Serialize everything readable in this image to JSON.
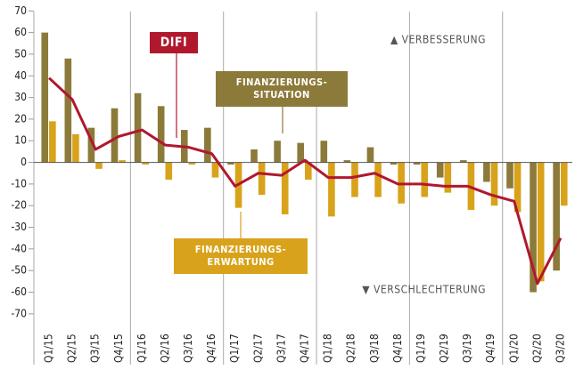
{
  "chart_data": {
    "type": "bar_line",
    "categories": [
      "Q1/15",
      "Q2/15",
      "Q3/15",
      "Q4/15",
      "Q1/16",
      "Q2/16",
      "Q3/16",
      "Q4/16",
      "Q1/17",
      "Q2/17",
      "Q3/17",
      "Q4/17",
      "Q1/18",
      "Q2/18",
      "Q3/18",
      "Q4/18",
      "Q1/19",
      "Q2/19",
      "Q3/19",
      "Q4/19",
      "Q1/20",
      "Q2/20",
      "Q3/20"
    ],
    "series": [
      {
        "name": [
          "FINANZIERUNGS-",
          "SITUATION"
        ],
        "color": "#8c7a3a",
        "kind": "bar",
        "values": [
          60,
          48,
          16,
          25,
          32,
          26,
          15,
          16,
          -1,
          6,
          10,
          9,
          10,
          1,
          7,
          -1,
          -1,
          -7,
          1,
          -9,
          -12,
          -60,
          -50
        ]
      },
      {
        "name": [
          "FINANZIERUNGS-",
          "ERWARTUNG"
        ],
        "color": "#d9a21b",
        "kind": "bar",
        "values": [
          19,
          13,
          -3,
          1,
          -1,
          -8,
          -1,
          -7,
          -21,
          -15,
          -24,
          -8,
          -25,
          -16,
          -16,
          -19,
          -16,
          -14,
          -22,
          -20,
          -23,
          -55,
          -20
        ]
      },
      {
        "name": [
          "DIFI"
        ],
        "color": "#b0182e",
        "kind": "line",
        "values": [
          39,
          29,
          6,
          12,
          15,
          8,
          7,
          4,
          -11,
          -5,
          -6,
          1,
          -7,
          -7,
          -5,
          -10,
          -10,
          -11,
          -11,
          -15,
          -18,
          -56,
          -35
        ]
      }
    ],
    "annotations": [
      "▲ VERBESSERUNG",
      "▼ VERSCHLECHTERUNG"
    ],
    "ylim": [
      -75,
      73
    ],
    "yticks": [
      -70,
      -60,
      -50,
      -40,
      -30,
      -20,
      -10,
      0,
      10,
      20,
      30,
      40,
      50,
      60,
      70
    ]
  }
}
